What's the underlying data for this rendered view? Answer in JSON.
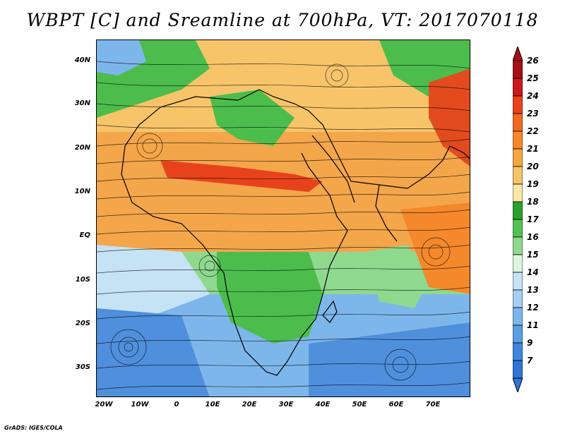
{
  "title": "WBPT [C] and Sreamline at 700hPa, VT: 2017070118",
  "lat_labels": [
    "40N",
    "30N",
    "20N",
    "10N",
    "EQ",
    "10S",
    "20S",
    "30S"
  ],
  "lon_labels": [
    "20W",
    "10W",
    "0",
    "10E",
    "20E",
    "30E",
    "40E",
    "50E",
    "60E",
    "70E"
  ],
  "colorbar": {
    "labels": [
      "26",
      "25",
      "24",
      "23",
      "22",
      "21",
      "20",
      "19",
      "18",
      "17",
      "16",
      "15",
      "14",
      "13",
      "12",
      "11",
      "9",
      "7"
    ],
    "colors": [
      "#a50f15",
      "#cb181d",
      "#e8421c",
      "#f26a22",
      "#f4882b",
      "#f5a742",
      "#f7c46a",
      "#fbe7a8",
      "#2ca02c",
      "#55c255",
      "#8fd98f",
      "#dcf5dc",
      "#c6e2f5",
      "#a4cff0",
      "#7db6ea",
      "#5b9fe3",
      "#3c88dc",
      "#2f75d6"
    ]
  },
  "field_colors": {
    "green": "#4cbd4c",
    "light_green": "#8fd98f",
    "orange": "#f3a64a",
    "light_orange": "#f7c46a",
    "red": "#e24b1e",
    "light_blue": "#c6e2f5",
    "blue": "#7db6ea",
    "dark_blue": "#4f8fdc"
  },
  "footer": "GrADS: IGES/COLA"
}
